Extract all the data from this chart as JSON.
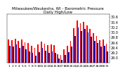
{
  "title": "Milwaukee/Waukesha, WI - Barometric Pressure",
  "subtitle": "Daily High/Low",
  "bar_width": 0.38,
  "high_color": "#ff0000",
  "low_color": "#0000bb",
  "background_color": "#ffffff",
  "ylim": [
    28.8,
    30.7
  ],
  "yticks": [
    29.0,
    29.2,
    29.4,
    29.6,
    29.8,
    30.0,
    30.2,
    30.4,
    30.6
  ],
  "days": [
    1,
    2,
    3,
    4,
    5,
    6,
    7,
    8,
    9,
    10,
    11,
    12,
    13,
    14,
    15,
    16,
    17,
    18,
    19,
    20,
    21,
    22,
    23,
    24,
    25,
    26,
    27,
    28,
    29,
    30,
    31
  ],
  "highs": [
    29.72,
    29.68,
    29.75,
    29.65,
    29.72,
    29.6,
    29.58,
    29.45,
    29.38,
    29.52,
    29.62,
    29.55,
    29.48,
    29.52,
    29.48,
    29.12,
    29.1,
    29.32,
    29.45,
    29.65,
    30.15,
    30.45,
    30.35,
    30.4,
    30.25,
    30.12,
    29.95,
    29.85,
    29.68,
    29.72,
    29.55
  ],
  "lows": [
    29.45,
    29.42,
    29.52,
    29.38,
    29.45,
    29.32,
    29.25,
    29.18,
    29.08,
    29.22,
    29.38,
    29.28,
    29.18,
    29.25,
    29.18,
    28.95,
    28.92,
    29.1,
    29.22,
    29.42,
    29.85,
    30.18,
    30.05,
    30.12,
    29.98,
    29.82,
    29.65,
    29.58,
    29.42,
    29.45,
    29.25
  ],
  "ylabel_fontsize": 3.5,
  "xlabel_fontsize": 3.2,
  "title_fontsize": 4.0
}
